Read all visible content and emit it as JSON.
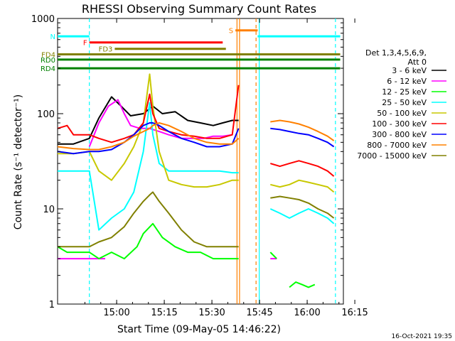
{
  "chart_data": {
    "type": "line",
    "title": "RHESSI Observing Summary Count Rates",
    "xlabel": "Start Time (09-May-05 14:46:22)",
    "ylabel": "Count Rate (s⁻¹ detector⁻¹)",
    "yscale": "log",
    "ylim": [
      1,
      1000
    ],
    "xlim_minutes": [
      -5,
      85
    ],
    "x_ticks": [
      "15:00",
      "15:15",
      "15:30",
      "15:45",
      "16:00",
      "16:15"
    ],
    "y_ticks": [
      "1",
      "10",
      "100",
      "1000"
    ],
    "legend": {
      "position": "right",
      "header": [
        "Det 1,3,4,5,6,9,",
        "Att 0"
      ],
      "entries": [
        "3 - 6 keV",
        "6 - 12 keV",
        "12 - 25 keV",
        "25 - 50 keV",
        "50 - 100 keV",
        "100 - 300 keV",
        "300 - 800 keV",
        "800 - 7000 keV",
        "7000 - 15000 keV"
      ]
    },
    "colors": {
      "3 - 6 keV": "#000000",
      "6 - 12 keV": "#ff00ff",
      "12 - 25 keV": "#00ff00",
      "25 - 50 keV": "#00ffff",
      "50 - 100 keV": "#c8c800",
      "100 - 300 keV": "#ff0000",
      "300 - 800 keV": "#0000ff",
      "800 - 7000 keV": "#ff8000",
      "7000 - 15000 keV": "#808000"
    },
    "flags": [
      {
        "label": "N",
        "color": "#00ffff",
        "x": [
          -5,
          5
        ],
        "y": 650
      },
      {
        "label": "",
        "color": "#00ffff",
        "x": [
          58,
          84
        ],
        "y": 650
      },
      {
        "label": "F",
        "color": "#ff0000",
        "x": [
          5,
          47
        ],
        "y": 560
      },
      {
        "label": "S",
        "color": "#ff8000",
        "x": [
          51,
          58
        ],
        "y": 750
      },
      {
        "label": "FD3",
        "color": "#808000",
        "x": [
          13,
          48
        ],
        "y": 480
      },
      {
        "label": "FD4",
        "color": "#808000",
        "x": [
          -5,
          84
        ],
        "y": 420
      },
      {
        "label": "RD0",
        "color": "#008000",
        "x": [
          -5,
          84
        ],
        "y": 370
      },
      {
        "label": "RD4",
        "color": "#008000",
        "x": [
          -5,
          84
        ],
        "y": 300
      }
    ],
    "vlines": [
      {
        "x": 5,
        "color": "#00ffff",
        "style": "dashed"
      },
      {
        "x": 58.5,
        "color": "#00ffff",
        "style": "solid"
      },
      {
        "x": 82.5,
        "color": "#00ffff",
        "style": "dashed"
      },
      {
        "x": 51.5,
        "color": "#ff8000",
        "style": "solid"
      },
      {
        "x": 52.3,
        "color": "#ff8000",
        "style": "solid"
      },
      {
        "x": 57.5,
        "color": "#ff8000",
        "style": "dashed"
      }
    ],
    "series": [
      {
        "name": "3 - 6 keV",
        "segments": [
          {
            "x": [
              -5,
              0,
              5,
              8,
              12,
              15,
              18,
              22,
              25,
              28,
              32,
              36,
              40,
              44,
              47,
              50,
              52
            ],
            "y": [
              48,
              48,
              55,
              90,
              150,
              120,
              95,
              100,
              120,
              100,
              105,
              85,
              80,
              75,
              80,
              85,
              85
            ]
          }
        ]
      },
      {
        "name": "6 - 12 keV",
        "segments": [
          {
            "x": [
              5,
              8,
              11,
              14,
              16,
              18,
              21,
              24,
              27,
              30,
              34,
              38,
              41,
              44,
              47,
              50
            ],
            "y": [
              45,
              80,
              120,
              140,
              100,
              75,
              70,
              70,
              65,
              60,
              55,
              55,
              55,
              58,
              58,
              60
            ]
          },
          {
            "x": [
              -5,
              10
            ],
            "y": [
              3,
              3
            ]
          },
          {
            "x": [
              62,
              64
            ],
            "y": [
              3,
              3
            ]
          }
        ]
      },
      {
        "name": "12 - 25 keV",
        "segments": [
          {
            "x": [
              -5,
              -2,
              5,
              8,
              12,
              16,
              20,
              22,
              25,
              28,
              32,
              36,
              40,
              44,
              48,
              52
            ],
            "y": [
              4,
              3.5,
              3.5,
              3.0,
              3.5,
              3.0,
              4.0,
              5.5,
              7.0,
              5.0,
              4.0,
              3.5,
              3.5,
              3.0,
              3.0,
              3.0
            ]
          },
          {
            "x": [
              62,
              64
            ],
            "y": [
              3.5,
              3.0
            ]
          },
          {
            "x": [
              68,
              70,
              72,
              74,
              76
            ],
            "y": [
              1.5,
              1.7,
              1.6,
              1.5,
              1.6
            ]
          }
        ]
      },
      {
        "name": "25 - 50 keV",
        "segments": [
          {
            "x": [
              -5,
              0,
              5,
              8,
              12,
              16,
              19,
              22,
              24,
              25,
              27,
              30,
              34,
              38,
              42,
              46,
              50,
              52
            ],
            "y": [
              25,
              25,
              25,
              6,
              8,
              10,
              15,
              40,
              130,
              60,
              30,
              25,
              25,
              25,
              25,
              25,
              24,
              24
            ]
          },
          {
            "x": [
              62,
              65,
              68,
              71,
              74,
              77,
              80,
              82
            ],
            "y": [
              10,
              9,
              8,
              9,
              10,
              9,
              8,
              7
            ]
          }
        ]
      },
      {
        "name": "50 - 100 keV",
        "segments": [
          {
            "x": [
              -5,
              0,
              5,
              8,
              12,
              16,
              19,
              22,
              24,
              25,
              27,
              30,
              34,
              38,
              42,
              46,
              50,
              52
            ],
            "y": [
              38,
              38,
              40,
              25,
              20,
              30,
              45,
              80,
              260,
              120,
              40,
              20,
              18,
              17,
              17,
              18,
              20,
              20
            ]
          },
          {
            "x": [
              62,
              65,
              68,
              71,
              74,
              77,
              80,
              82
            ],
            "y": [
              18,
              17,
              18,
              20,
              19,
              18,
              17,
              15
            ]
          }
        ]
      },
      {
        "name": "100 - 300 keV",
        "segments": [
          {
            "x": [
              -5,
              -2,
              0,
              5,
              8,
              12,
              16,
              19,
              22,
              24,
              25,
              27,
              30,
              34,
              38,
              42,
              46,
              50,
              52
            ],
            "y": [
              70,
              75,
              60,
              60,
              55,
              50,
              55,
              60,
              80,
              160,
              100,
              70,
              65,
              60,
              58,
              55,
              55,
              60,
              200
            ]
          },
          {
            "x": [
              62,
              65,
              68,
              71,
              74,
              77,
              80,
              82
            ],
            "y": [
              30,
              28,
              30,
              32,
              30,
              28,
              25,
              22
            ]
          }
        ]
      },
      {
        "name": "300 - 800 keV",
        "segments": [
          {
            "x": [
              -5,
              0,
              5,
              8,
              12,
              16,
              19,
              22,
              24,
              25,
              27,
              30,
              34,
              38,
              42,
              46,
              50,
              52
            ],
            "y": [
              40,
              38,
              40,
              40,
              42,
              50,
              60,
              75,
              80,
              80,
              75,
              65,
              55,
              50,
              45,
              45,
              48,
              70
            ]
          },
          {
            "x": [
              62,
              65,
              68,
              71,
              74,
              77,
              80,
              82
            ],
            "y": [
              70,
              68,
              65,
              62,
              60,
              55,
              50,
              45
            ]
          }
        ]
      },
      {
        "name": "800 - 7000 keV",
        "segments": [
          {
            "x": [
              -5,
              0,
              5,
              8,
              12,
              16,
              19,
              22,
              24,
              25,
              27,
              30,
              34,
              38,
              42,
              46,
              50,
              52
            ],
            "y": [
              45,
              43,
              42,
              42,
              45,
              50,
              58,
              65,
              70,
              75,
              80,
              75,
              65,
              55,
              50,
              48,
              48,
              55
            ]
          },
          {
            "x": [
              62,
              65,
              68,
              71,
              74,
              77,
              80,
              82
            ],
            "y": [
              82,
              85,
              82,
              78,
              72,
              65,
              58,
              52
            ]
          }
        ]
      },
      {
        "name": "7000 - 15000 keV",
        "segments": [
          {
            "x": [
              -5,
              0,
              5,
              8,
              12,
              16,
              19,
              22,
              24,
              25,
              27,
              30,
              34,
              38,
              42,
              46,
              50,
              52
            ],
            "y": [
              4,
              4,
              4,
              4.5,
              5,
              6.5,
              9,
              12,
              14,
              15,
              12,
              9,
              6,
              4.5,
              4,
              4,
              4,
              4
            ]
          },
          {
            "x": [
              62,
              65,
              68,
              71,
              74,
              77,
              80,
              82
            ],
            "y": [
              13,
              13.5,
              13,
              12.5,
              11.5,
              10,
              9,
              8
            ]
          }
        ]
      }
    ]
  },
  "footer": {
    "date_stamp": "16-Oct-2021 19:35"
  }
}
